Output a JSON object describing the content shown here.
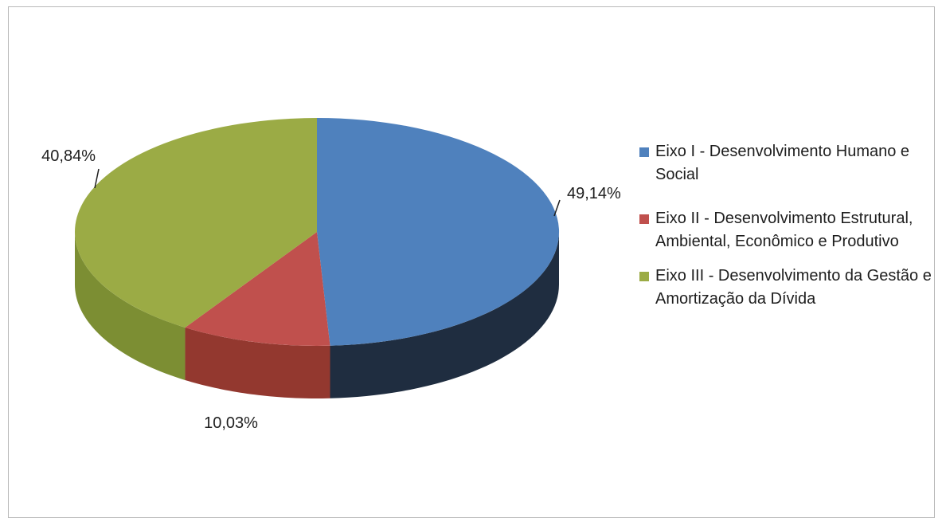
{
  "chart_data": {
    "type": "pie",
    "style": "3d",
    "title": "",
    "legend_position": "right",
    "slices": [
      {
        "name": "Eixo I - Desenvolvimento Humano e Social",
        "value": 49.14,
        "label": "49,14%",
        "color": "#4f81bd",
        "side_color": "#1f2d40"
      },
      {
        "name": "Eixo II - Desenvolvimento Estrutural, Ambiental, Econômico e Produtivo",
        "value": 10.03,
        "label": "10,03%",
        "color": "#c0504d",
        "side_color": "#93382f"
      },
      {
        "name": "Eixo III - Desenvolvimento da Gestão e Amortização da Dívida",
        "value": 40.84,
        "label": "40,84%",
        "color": "#9bab45",
        "side_color": "#7c8e33"
      }
    ]
  },
  "legend": {
    "items": [
      {
        "label": "Eixo I - Desenvolvimento Humano e Social",
        "color": "#4f81bd"
      },
      {
        "label": "Eixo II - Desenvolvimento Estrutural, Ambiental, Econômico e Produtivo",
        "color": "#c0504d"
      },
      {
        "label": "Eixo III - Desenvolvimento da Gestão e Amortização da Dívida",
        "color": "#9bab45"
      }
    ]
  }
}
